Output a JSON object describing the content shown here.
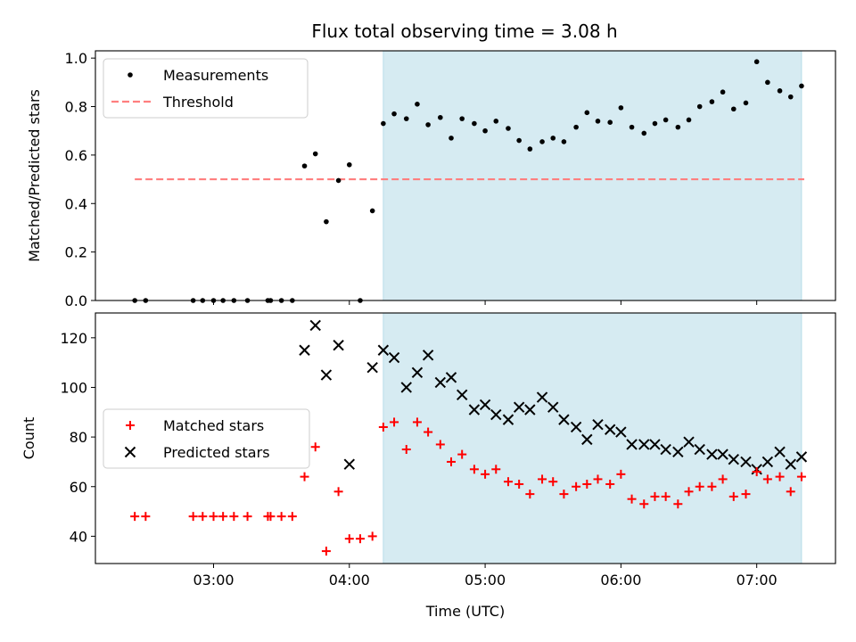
{
  "title": "Flux total observing time = 3.08 h",
  "colors": {
    "measurement": "#000000",
    "threshold": "#ff7f7f",
    "matched": "#ff0000",
    "predicted": "#000000",
    "span": "#add8e6"
  },
  "chart_data": [
    {
      "type": "scatter",
      "panel": "top",
      "ylabel": "Matched/Predicted stars",
      "xlim": [
        2.13,
        7.58
      ],
      "ylim": [
        0,
        1.03
      ],
      "yticks": [
        0.0,
        0.2,
        0.4,
        0.6,
        0.8,
        1.0
      ],
      "ytick_labels": [
        "0.0",
        "0.2",
        "0.4",
        "0.6",
        "0.8",
        "1.0"
      ],
      "xticks": [
        3,
        4,
        5,
        6,
        7
      ],
      "highlight_span": [
        4.25,
        7.33
      ],
      "legend": {
        "position": "upper-left",
        "entries": [
          {
            "key": "measurements",
            "label": "Measurements"
          },
          {
            "key": "threshold",
            "label": "Threshold"
          }
        ]
      },
      "threshold": {
        "y": 0.5,
        "x_range": [
          2.42,
          7.35
        ]
      },
      "series": [
        {
          "key": "measurements",
          "name": "Measurements",
          "points": [
            [
              2.42,
              0.0
            ],
            [
              2.5,
              0.0
            ],
            [
              2.85,
              0.0
            ],
            [
              2.92,
              0.0
            ],
            [
              3.0,
              0.0
            ],
            [
              3.07,
              0.0
            ],
            [
              3.15,
              0.0
            ],
            [
              3.25,
              0.0
            ],
            [
              3.4,
              0.0
            ],
            [
              3.42,
              0.0
            ],
            [
              3.5,
              0.0
            ],
            [
              3.58,
              0.0
            ],
            [
              3.67,
              0.555
            ],
            [
              3.75,
              0.605
            ],
            [
              3.83,
              0.325
            ],
            [
              3.92,
              0.495
            ],
            [
              4.0,
              0.56
            ],
            [
              4.08,
              0.0
            ],
            [
              4.17,
              0.37
            ],
            [
              4.25,
              0.73
            ],
            [
              4.33,
              0.77
            ],
            [
              4.42,
              0.75
            ],
            [
              4.5,
              0.81
            ],
            [
              4.58,
              0.725
            ],
            [
              4.67,
              0.755
            ],
            [
              4.75,
              0.67
            ],
            [
              4.83,
              0.75
            ],
            [
              4.92,
              0.73
            ],
            [
              5.0,
              0.7
            ],
            [
              5.08,
              0.74
            ],
            [
              5.17,
              0.71
            ],
            [
              5.25,
              0.66
            ],
            [
              5.33,
              0.625
            ],
            [
              5.42,
              0.655
            ],
            [
              5.5,
              0.67
            ],
            [
              5.58,
              0.655
            ],
            [
              5.67,
              0.715
            ],
            [
              5.75,
              0.775
            ],
            [
              5.83,
              0.74
            ],
            [
              5.92,
              0.735
            ],
            [
              6.0,
              0.795
            ],
            [
              6.08,
              0.715
            ],
            [
              6.17,
              0.69
            ],
            [
              6.25,
              0.73
            ],
            [
              6.33,
              0.745
            ],
            [
              6.42,
              0.715
            ],
            [
              6.5,
              0.745
            ],
            [
              6.58,
              0.8
            ],
            [
              6.67,
              0.82
            ],
            [
              6.75,
              0.86
            ],
            [
              6.83,
              0.79
            ],
            [
              6.92,
              0.815
            ],
            [
              7.0,
              0.985
            ],
            [
              7.08,
              0.9
            ],
            [
              7.17,
              0.865
            ],
            [
              7.25,
              0.84
            ],
            [
              7.33,
              0.885
            ]
          ]
        }
      ]
    },
    {
      "type": "scatter",
      "panel": "bottom",
      "xlabel": "Time (UTC)",
      "ylabel": "Count",
      "xlim": [
        2.13,
        7.58
      ],
      "ylim": [
        29,
        130
      ],
      "yticks": [
        40,
        60,
        80,
        100,
        120
      ],
      "ytick_labels": [
        "40",
        "60",
        "80",
        "100",
        "120"
      ],
      "xticks": [
        3,
        4,
        5,
        6,
        7
      ],
      "xtick_labels": [
        "03:00",
        "04:00",
        "05:00",
        "06:00",
        "07:00"
      ],
      "highlight_span": [
        4.25,
        7.33
      ],
      "legend": {
        "position": "center-left",
        "entries": [
          {
            "key": "matched",
            "label": "Matched stars"
          },
          {
            "key": "predicted",
            "label": "Predicted stars"
          }
        ]
      },
      "series": [
        {
          "key": "matched",
          "name": "Matched stars",
          "marker": "plus",
          "points": [
            [
              2.42,
              48
            ],
            [
              2.5,
              48
            ],
            [
              2.85,
              48
            ],
            [
              2.92,
              48
            ],
            [
              3.0,
              48
            ],
            [
              3.07,
              48
            ],
            [
              3.15,
              48
            ],
            [
              3.25,
              48
            ],
            [
              3.4,
              48
            ],
            [
              3.42,
              48
            ],
            [
              3.5,
              48
            ],
            [
              3.58,
              48
            ],
            [
              3.67,
              64
            ],
            [
              3.75,
              76
            ],
            [
              3.83,
              34
            ],
            [
              3.92,
              58
            ],
            [
              4.0,
              39
            ],
            [
              4.08,
              39
            ],
            [
              4.17,
              40
            ],
            [
              4.25,
              84
            ],
            [
              4.33,
              86
            ],
            [
              4.42,
              75
            ],
            [
              4.5,
              86
            ],
            [
              4.58,
              82
            ],
            [
              4.67,
              77
            ],
            [
              4.75,
              70
            ],
            [
              4.83,
              73
            ],
            [
              4.92,
              67
            ],
            [
              5.0,
              65
            ],
            [
              5.08,
              67
            ],
            [
              5.17,
              62
            ],
            [
              5.25,
              61
            ],
            [
              5.33,
              57
            ],
            [
              5.42,
              63
            ],
            [
              5.5,
              62
            ],
            [
              5.58,
              57
            ],
            [
              5.67,
              60
            ],
            [
              5.75,
              61
            ],
            [
              5.83,
              63
            ],
            [
              5.92,
              61
            ],
            [
              6.0,
              65
            ],
            [
              6.08,
              55
            ],
            [
              6.17,
              53
            ],
            [
              6.25,
              56
            ],
            [
              6.33,
              56
            ],
            [
              6.42,
              53
            ],
            [
              6.5,
              58
            ],
            [
              6.58,
              60
            ],
            [
              6.67,
              60
            ],
            [
              6.75,
              63
            ],
            [
              6.83,
              56
            ],
            [
              6.92,
              57
            ],
            [
              7.0,
              66
            ],
            [
              7.08,
              63
            ],
            [
              7.17,
              64
            ],
            [
              7.25,
              58
            ],
            [
              7.33,
              64
            ]
          ]
        },
        {
          "key": "predicted",
          "name": "Predicted stars",
          "marker": "x",
          "points": [
            [
              3.67,
              115
            ],
            [
              3.75,
              125
            ],
            [
              3.83,
              105
            ],
            [
              3.92,
              117
            ],
            [
              4.0,
              69
            ],
            [
              4.17,
              108
            ],
            [
              4.25,
              115
            ],
            [
              4.33,
              112
            ],
            [
              4.42,
              100
            ],
            [
              4.5,
              106
            ],
            [
              4.58,
              113
            ],
            [
              4.67,
              102
            ],
            [
              4.75,
              104
            ],
            [
              4.83,
              97
            ],
            [
              4.92,
              91
            ],
            [
              5.0,
              93
            ],
            [
              5.08,
              89
            ],
            [
              5.17,
              87
            ],
            [
              5.25,
              92
            ],
            [
              5.33,
              91
            ],
            [
              5.42,
              96
            ],
            [
              5.5,
              92
            ],
            [
              5.58,
              87
            ],
            [
              5.67,
              84
            ],
            [
              5.75,
              79
            ],
            [
              5.83,
              85
            ],
            [
              5.92,
              83
            ],
            [
              6.0,
              82
            ],
            [
              6.08,
              77
            ],
            [
              6.17,
              77
            ],
            [
              6.25,
              77
            ],
            [
              6.33,
              75
            ],
            [
              6.42,
              74
            ],
            [
              6.5,
              78
            ],
            [
              6.58,
              75
            ],
            [
              6.67,
              73
            ],
            [
              6.75,
              73
            ],
            [
              6.83,
              71
            ],
            [
              6.92,
              70
            ],
            [
              7.0,
              67
            ],
            [
              7.08,
              70
            ],
            [
              7.17,
              74
            ],
            [
              7.25,
              69
            ],
            [
              7.33,
              72
            ]
          ]
        }
      ]
    }
  ]
}
